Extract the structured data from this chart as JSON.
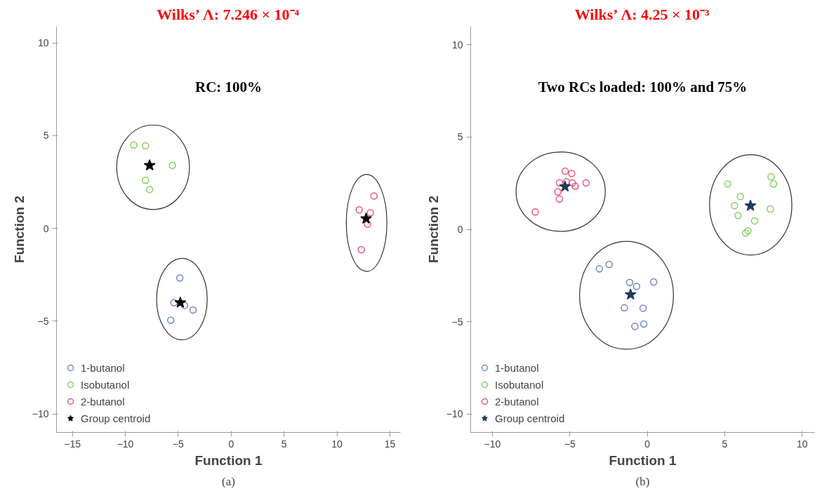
{
  "chart_data": [
    {
      "type": "scatter",
      "title": "Wilks’ Λ: 7.246 × 10⁻⁴",
      "xlabel": "Function 1",
      "ylabel": "Function 2",
      "xlim": [
        -16.5,
        16.0
      ],
      "ylim": [
        -11.0,
        10.9
      ],
      "xticks": [
        -15,
        -10,
        -5,
        0,
        5,
        10,
        15
      ],
      "yticks": [
        -10,
        -5,
        0,
        5,
        10
      ],
      "grid": false,
      "legend": "bottom left",
      "marker": "circle",
      "annotations": [
        "RC: 100%",
        "(a)"
      ],
      "series": [
        {
          "name": "1-butanol",
          "color": "#6f86c6",
          "x": [
            -4.85,
            -5.4,
            -4.4,
            -3.6,
            -5.7
          ],
          "values": [
            -2.67,
            -4.0,
            -4.15,
            -4.4,
            -4.95
          ]
        },
        {
          "name": "Isobutanol",
          "color": "#7fcf5f",
          "x": [
            -9.2,
            -8.1,
            -5.55,
            -8.1,
            -7.7
          ],
          "values": [
            4.5,
            4.45,
            3.4,
            2.6,
            2.1
          ]
        },
        {
          "name": "2-butanol",
          "color": "#e8557a",
          "x": [
            13.5,
            12.1,
            13.15,
            12.9,
            12.3
          ],
          "values": [
            1.75,
            1.0,
            0.85,
            0.23,
            -1.15
          ]
        },
        {
          "name": "Group centroid",
          "color": "#000000",
          "marker": "star",
          "x": [
            -4.8,
            -7.7,
            12.75
          ],
          "values": [
            -4.0,
            3.4,
            0.53
          ]
        }
      ]
    },
    {
      "type": "scatter",
      "title": "Wilks’ Λ: 4.25 × 10⁻³",
      "xlabel": "Function 1",
      "ylabel": "Function 2",
      "xlim": [
        -11.4,
        10.8
      ],
      "ylim": [
        -11.0,
        11.0
      ],
      "xticks": [
        -10,
        -5,
        0,
        5,
        10
      ],
      "yticks": [
        -10,
        -5,
        0,
        5,
        10
      ],
      "grid": false,
      "legend": "bottom left",
      "marker": "circle",
      "annotations": [
        "Two RCs loaded: 100% and 75%",
        "(b)"
      ],
      "series": [
        {
          "name": "1-butanol",
          "color": "#6f86c6",
          "x": [
            -3.09,
            -2.46,
            -1.14,
            -0.69,
            0.41,
            -1.48,
            -0.27,
            -0.8,
            -0.23
          ],
          "values": [
            -2.14,
            -1.9,
            -2.88,
            -3.09,
            -2.85,
            -4.25,
            -4.27,
            -5.25,
            -5.13
          ]
        },
        {
          "name": "Isobutanol",
          "color": "#7fcf5f",
          "x": [
            5.2,
            7.99,
            8.15,
            6.01,
            5.63,
            5.86,
            7.94,
            6.93,
            6.5,
            6.35
          ],
          "values": [
            2.46,
            2.85,
            2.46,
            1.78,
            1.28,
            0.75,
            1.1,
            0.46,
            -0.08,
            -0.2
          ]
        },
        {
          "name": "2-butanol",
          "color": "#e8557a",
          "x": [
            -5.3,
            -4.88,
            -5.67,
            -5.23,
            -4.83,
            -4.65,
            -3.95,
            -5.77,
            -5.67,
            -7.23
          ],
          "values": [
            3.15,
            3.03,
            2.52,
            2.58,
            2.52,
            2.34,
            2.52,
            2.03,
            1.64,
            0.94
          ]
        },
        {
          "name": "Group centroid",
          "color": "#1f3a60",
          "marker": "star",
          "x": [
            -1.08,
            6.66,
            -5.31
          ],
          "values": [
            -3.53,
            1.28,
            2.32
          ]
        }
      ]
    }
  ]
}
